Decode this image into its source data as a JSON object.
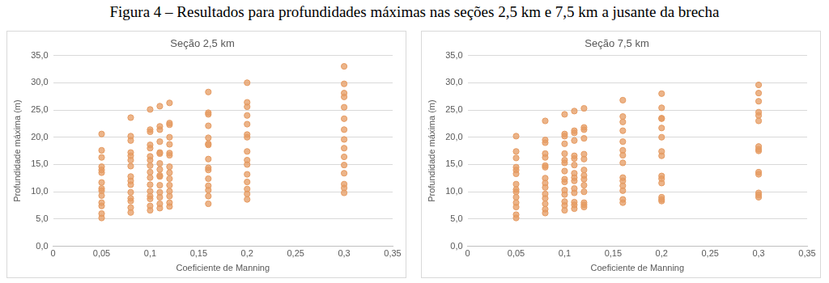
{
  "figure_title": "Figura 4 – Resultados para profundidades máximas nas seções 2,5 km e 7,5 km a jusante da brecha",
  "chart_data": [
    {
      "type": "scatter",
      "title": "Seção 2,5 km",
      "x_label": "Coeficiente de Manning",
      "y_label": "Profundidade máxima (m)",
      "color": "#e59b62",
      "marker": "circle",
      "grid": "y",
      "x": [
        0.05,
        0.05,
        0.05,
        0.05,
        0.05,
        0.05,
        0.05,
        0.05,
        0.05,
        0.05,
        0.05,
        0.05,
        0.05,
        0.05,
        0.08,
        0.08,
        0.08,
        0.08,
        0.08,
        0.08,
        0.08,
        0.08,
        0.08,
        0.08,
        0.08,
        0.08,
        0.08,
        0.08,
        0.08,
        0.1,
        0.1,
        0.1,
        0.1,
        0.1,
        0.1,
        0.1,
        0.1,
        0.1,
        0.1,
        0.1,
        0.1,
        0.1,
        0.1,
        0.1,
        0.1,
        0.11,
        0.11,
        0.11,
        0.11,
        0.11,
        0.11,
        0.11,
        0.11,
        0.11,
        0.11,
        0.11,
        0.11,
        0.11,
        0.11,
        0.11,
        0.12,
        0.12,
        0.12,
        0.12,
        0.12,
        0.12,
        0.12,
        0.12,
        0.12,
        0.12,
        0.12,
        0.12,
        0.12,
        0.12,
        0.12,
        0.16,
        0.16,
        0.16,
        0.16,
        0.16,
        0.16,
        0.16,
        0.16,
        0.16,
        0.16,
        0.16,
        0.16,
        0.16,
        0.16,
        0.16,
        0.2,
        0.2,
        0.2,
        0.2,
        0.2,
        0.2,
        0.2,
        0.2,
        0.2,
        0.2,
        0.2,
        0.2,
        0.2,
        0.2,
        0.2,
        0.3,
        0.3,
        0.3,
        0.3,
        0.3,
        0.3,
        0.3,
        0.3,
        0.3,
        0.3,
        0.3,
        0.3,
        0.3,
        0.3,
        0.3
      ],
      "values": [
        20.6,
        17.6,
        16.3,
        14.6,
        14.0,
        13.5,
        11.7,
        10.6,
        10.2,
        9.3,
        8.0,
        7.4,
        6.0,
        5.2,
        23.6,
        20.2,
        19.4,
        17.2,
        16.6,
        15.8,
        14.7,
        12.8,
        12.0,
        11.3,
        9.9,
        8.8,
        8.3,
        7.1,
        6.2,
        25.1,
        21.4,
        21.0,
        18.6,
        18.0,
        16.5,
        15.8,
        14.8,
        13.6,
        12.6,
        11.3,
        10.1,
        9.2,
        8.7,
        7.4,
        6.6,
        25.7,
        22.0,
        21.4,
        19.2,
        17.2,
        17.0,
        15.2,
        14.1,
        13.0,
        12.8,
        11.2,
        9.9,
        9.0,
        7.8,
        7.0,
        26.3,
        22.6,
        22.3,
        20.0,
        18.7,
        17.1,
        16.7,
        14.6,
        13.5,
        12.4,
        11.2,
        10.1,
        9.2,
        8.0,
        7.3,
        28.3,
        24.5,
        24.2,
        22.1,
        19.9,
        18.8,
        18.6,
        16.0,
        14.4,
        14.0,
        12.4,
        11.1,
        10.3,
        9.2,
        7.8,
        30.0,
        26.4,
        25.6,
        24.0,
        22.4,
        20.5,
        20.0,
        17.4,
        15.8,
        15.0,
        13.2,
        11.8,
        10.5,
        9.6,
        8.6,
        33.0,
        29.8,
        28.1,
        27.4,
        25.5,
        23.4,
        21.4,
        19.6,
        18.0,
        16.4,
        14.9,
        13.4,
        11.4,
        10.7,
        9.8
      ],
      "xlim": [
        0,
        0.35
      ],
      "xticks": [
        {
          "value": 0,
          "label": "0"
        },
        {
          "value": 0.05,
          "label": "0,05"
        },
        {
          "value": 0.1,
          "label": "0,1"
        },
        {
          "value": 0.15,
          "label": "0,15"
        },
        {
          "value": 0.2,
          "label": "0,2"
        },
        {
          "value": 0.25,
          "label": "0,25"
        },
        {
          "value": 0.3,
          "label": "0,3"
        },
        {
          "value": 0.35,
          "label": "0,35"
        }
      ],
      "ylim": [
        0,
        35
      ],
      "yticks": [
        {
          "value": 0,
          "label": "0,0"
        },
        {
          "value": 5,
          "label": "5,0"
        },
        {
          "value": 10,
          "label": "10,0"
        },
        {
          "value": 15,
          "label": "15,0"
        },
        {
          "value": 20,
          "label": "20,0"
        },
        {
          "value": 25,
          "label": "25,0"
        },
        {
          "value": 30,
          "label": "30,0"
        },
        {
          "value": 35,
          "label": "35,0"
        }
      ]
    },
    {
      "type": "scatter",
      "title": "Seção 7,5 km",
      "x_label": "Coeficiente de Manning",
      "y_label": "Profundidade máxima (m)",
      "color": "#e59b62",
      "marker": "circle",
      "grid": "y",
      "x": [
        0.05,
        0.05,
        0.05,
        0.05,
        0.05,
        0.05,
        0.05,
        0.05,
        0.05,
        0.05,
        0.05,
        0.05,
        0.05,
        0.05,
        0.08,
        0.08,
        0.08,
        0.08,
        0.08,
        0.08,
        0.08,
        0.08,
        0.08,
        0.08,
        0.08,
        0.08,
        0.08,
        0.08,
        0.08,
        0.1,
        0.1,
        0.1,
        0.1,
        0.1,
        0.1,
        0.1,
        0.1,
        0.1,
        0.1,
        0.1,
        0.1,
        0.1,
        0.1,
        0.1,
        0.11,
        0.11,
        0.11,
        0.11,
        0.11,
        0.11,
        0.11,
        0.11,
        0.11,
        0.11,
        0.11,
        0.11,
        0.11,
        0.11,
        0.11,
        0.12,
        0.12,
        0.12,
        0.12,
        0.12,
        0.12,
        0.12,
        0.12,
        0.12,
        0.12,
        0.12,
        0.12,
        0.12,
        0.12,
        0.16,
        0.16,
        0.16,
        0.16,
        0.16,
        0.16,
        0.16,
        0.16,
        0.16,
        0.16,
        0.16,
        0.16,
        0.16,
        0.16,
        0.2,
        0.2,
        0.2,
        0.2,
        0.2,
        0.2,
        0.2,
        0.2,
        0.2,
        0.2,
        0.2,
        0.2,
        0.2,
        0.2,
        0.3,
        0.3,
        0.3,
        0.3,
        0.3,
        0.3,
        0.3,
        0.3,
        0.3,
        0.3,
        0.3,
        0.3,
        0.3,
        0.3
      ],
      "values": [
        20.2,
        17.4,
        16.2,
        14.5,
        14.0,
        13.3,
        11.4,
        10.4,
        10.0,
        9.0,
        8.0,
        7.2,
        5.8,
        5.2,
        23.0,
        19.5,
        19.0,
        17.0,
        16.3,
        14.8,
        14.5,
        12.5,
        11.6,
        10.8,
        9.6,
        8.8,
        7.8,
        6.8,
        6.1,
        24.2,
        20.6,
        20.2,
        18.8,
        17.0,
        15.8,
        15.3,
        13.8,
        12.3,
        11.8,
        10.3,
        9.5,
        8.2,
        7.5,
        6.6,
        24.8,
        21.2,
        20.8,
        19.4,
        16.6,
        16.1,
        14.9,
        13.4,
        12.6,
        12.0,
        10.6,
        9.8,
        8.1,
        7.6,
        6.9,
        25.3,
        21.8,
        21.4,
        19.8,
        16.9,
        16.0,
        14.0,
        13.0,
        12.3,
        11.2,
        10.0,
        8.0,
        7.6,
        7.2,
        26.8,
        23.8,
        22.8,
        21.2,
        19.2,
        17.6,
        16.7,
        15.3,
        12.6,
        12.0,
        11.1,
        10.2,
        8.6,
        8.0,
        28.0,
        25.4,
        23.5,
        23.4,
        21.7,
        20.0,
        17.4,
        16.6,
        12.9,
        12.4,
        11.6,
        9.0,
        8.6,
        8.3,
        29.6,
        28.1,
        26.6,
        24.6,
        24.0,
        23.0,
        18.3,
        17.8,
        17.5,
        13.6,
        13.2,
        9.8,
        9.4,
        9.0
      ],
      "xlim": [
        0,
        0.35
      ],
      "xticks": [
        {
          "value": 0,
          "label": "0"
        },
        {
          "value": 0.05,
          "label": "0,05"
        },
        {
          "value": 0.1,
          "label": "0,1"
        },
        {
          "value": 0.15,
          "label": "0,15"
        },
        {
          "value": 0.2,
          "label": "0,2"
        },
        {
          "value": 0.25,
          "label": "0,25"
        },
        {
          "value": 0.3,
          "label": "0,3"
        },
        {
          "value": 0.35,
          "label": "0,35"
        }
      ],
      "ylim": [
        0,
        35
      ],
      "yticks": [
        {
          "value": 0,
          "label": "0,0"
        },
        {
          "value": 5,
          "label": "5,0"
        },
        {
          "value": 10,
          "label": "10,0"
        },
        {
          "value": 15,
          "label": "15,0"
        },
        {
          "value": 20,
          "label": "20,0"
        },
        {
          "value": 25,
          "label": "25,0"
        },
        {
          "value": 30,
          "label": "30,0"
        },
        {
          "value": 35,
          "label": "35,0"
        }
      ]
    }
  ]
}
